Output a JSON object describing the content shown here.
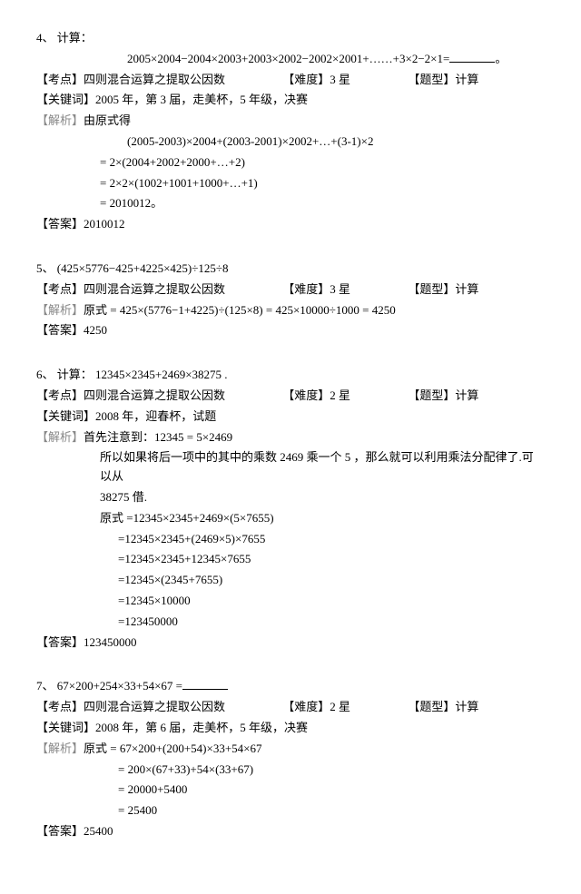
{
  "problems": [
    {
      "num": "4、",
      "title_prefix": "计算：",
      "title_expr": "2005×2004−2004×2003+2003×2002−2002×2001+……+3×2−2×1=",
      "title_tail": "。",
      "kaodian_label": "【考点】",
      "kaodian": "四则混合运算之提取公因数",
      "nandu_label": "【难度】",
      "nandu": "3 星",
      "tixing_label": "【题型】",
      "tixing": "计算",
      "keyword_label": "【关键词】",
      "keyword": "2005 年，第 3 届，走美杯，5 年级，决赛",
      "jiexi_label": "【解析】",
      "jiexi_head": "由原式得",
      "lines": [
        "(2005-2003)×2004+(2003-2001)×2002+…+(3-1)×2",
        "= 2×(2004+2002+2000+…+2)",
        "= 2×2×(1002+1001+1000+…+1)",
        "= 2010012。"
      ],
      "answer_label": "【答案】",
      "answer": "2010012"
    },
    {
      "num": "5、",
      "title_prefix": "",
      "title_expr": "(425×5776−425+4225×425)÷125÷8",
      "title_tail": "",
      "kaodian_label": "【考点】",
      "kaodian": "四则混合运算之提取公因数",
      "nandu_label": "【难度】",
      "nandu": "3 星",
      "tixing_label": "【题型】",
      "tixing": "计算",
      "keyword_label": "",
      "keyword": "",
      "jiexi_label": "【解析】",
      "jiexi_head": "原式 = 425×(5776−1+4225)÷(125×8) = 425×10000÷1000 = 4250",
      "lines": [],
      "answer_label": "【答案】",
      "answer": "4250"
    },
    {
      "num": "6、",
      "title_prefix": "计算：",
      "title_expr": "12345×2345+2469×38275 .",
      "title_tail": "",
      "kaodian_label": "【考点】",
      "kaodian": "四则混合运算之提取公因数",
      "nandu_label": "【难度】",
      "nandu": "2 星",
      "tixing_label": "【题型】",
      "tixing": "计算",
      "keyword_label": "【关键词】",
      "keyword": "2008 年，迎春杯，试题",
      "jiexi_label": "【解析】",
      "jiexi_head": "首先注意到：12345 = 5×2469",
      "note1": "所以如果将后一项中的其中的乘数 2469 乘一个 5 ，那么就可以利用乘法分配律了.可以从",
      "note2": "38275 借.",
      "pre": "原式 =12345×2345+2469×(5×7655)",
      "lines": [
        "=12345×2345+(2469×5)×7655",
        "=12345×2345+12345×7655",
        "=12345×(2345+7655)",
        "=12345×10000",
        "=123450000"
      ],
      "answer_label": "【答案】",
      "answer": "123450000"
    },
    {
      "num": "7、",
      "title_prefix": "",
      "title_expr": "67×200+254×33+54×67 =",
      "title_tail": "",
      "kaodian_label": "【考点】",
      "kaodian": "四则混合运算之提取公因数",
      "nandu_label": "【难度】",
      "nandu": "2 星",
      "tixing_label": "【题型】",
      "tixing": "计算",
      "keyword_label": "【关键词】",
      "keyword": "2008 年，第 6 届，走美杯，5 年级，决赛",
      "jiexi_label": "【解析】",
      "jiexi_head": "原式 = 67×200+(200+54)×33+54×67",
      "lines": [
        "= 200×(67+33)+54×(33+67)",
        "= 20000+5400",
        "= 25400"
      ],
      "answer_label": "【答案】",
      "answer": "25400"
    }
  ]
}
